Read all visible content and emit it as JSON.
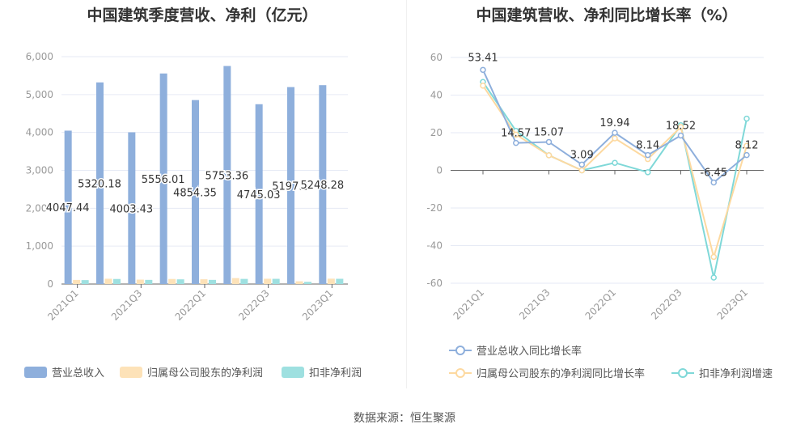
{
  "chart_data": [
    {
      "type": "bar",
      "title": "中国建筑季度营收、净利（亿元）",
      "categories": [
        "2021Q1",
        "2021Q2",
        "2021Q3",
        "2021Q4",
        "2022Q1",
        "2022Q2",
        "2022Q3",
        "2022Q4",
        "2023Q1"
      ],
      "xtick_labels": [
        "2021Q1",
        "2021Q3",
        "2022Q1",
        "2022Q3",
        "2023Q1"
      ],
      "ylim": [
        0,
        6000
      ],
      "yticks": [
        "0",
        "1,000",
        "2,000",
        "3,000",
        "4,000",
        "5,000",
        "6,000"
      ],
      "series": [
        {
          "name": "营业总收入",
          "color": "#8eafdc",
          "values": [
            4047.44,
            5320.18,
            4003.43,
            5556.01,
            4854.35,
            5753.36,
            4745.03,
            5197.1,
            5248.28
          ],
          "labels": [
            "4047.44",
            "5320.18",
            "4003.43",
            "5556.01",
            "4854.35",
            "5753.36",
            "4745.03",
            "5197.1",
            "5248.28"
          ]
        },
        {
          "name": "归属母公司股东的净利润",
          "color": "#fde2b8",
          "values": [
            109,
            140,
            117,
            134,
            126,
            157,
            140,
            73,
            142
          ]
        },
        {
          "name": "扣非净利润",
          "color": "#9ee0e0",
          "values": [
            104,
            134,
            110,
            124,
            110,
            136,
            138,
            58,
            139
          ]
        }
      ],
      "legend": "bottom"
    },
    {
      "type": "line",
      "title": "中国建筑营收、净利同比增长率（%）",
      "categories": [
        "2021Q1",
        "2021Q2",
        "2021Q3",
        "2021Q4",
        "2022Q1",
        "2022Q2",
        "2022Q3",
        "2022Q4",
        "2023Q1"
      ],
      "xtick_labels": [
        "2021Q1",
        "2021Q3",
        "2022Q1",
        "2022Q3",
        "2023Q1"
      ],
      "ylim": [
        -60,
        60
      ],
      "yticks": [
        "-60",
        "-40",
        "-20",
        "0",
        "20",
        "40",
        "60"
      ],
      "series": [
        {
          "name": "营业总收入同比增长率",
          "color": "#8eafdc",
          "values": [
            53.41,
            14.57,
            15.07,
            3.09,
            19.94,
            8.14,
            18.52,
            -6.45,
            8.12
          ],
          "labels": [
            "53.41",
            "14.57",
            "15.07",
            "3.09",
            "19.94",
            "8.14",
            "18.52",
            "-6.45",
            "8.12"
          ]
        },
        {
          "name": "归属母公司股东的净利润同比增长率",
          "color": "#fdd9a0",
          "values": [
            45,
            19,
            8,
            0,
            17,
            6,
            23,
            -46,
            13
          ]
        },
        {
          "name": "扣非净利润增速",
          "color": "#7fd8d8",
          "values": [
            47,
            21,
            8,
            0,
            4,
            -1,
            24,
            -57,
            27.5
          ]
        }
      ],
      "legend": "bottom"
    }
  ],
  "source": "数据来源：恒生聚源"
}
